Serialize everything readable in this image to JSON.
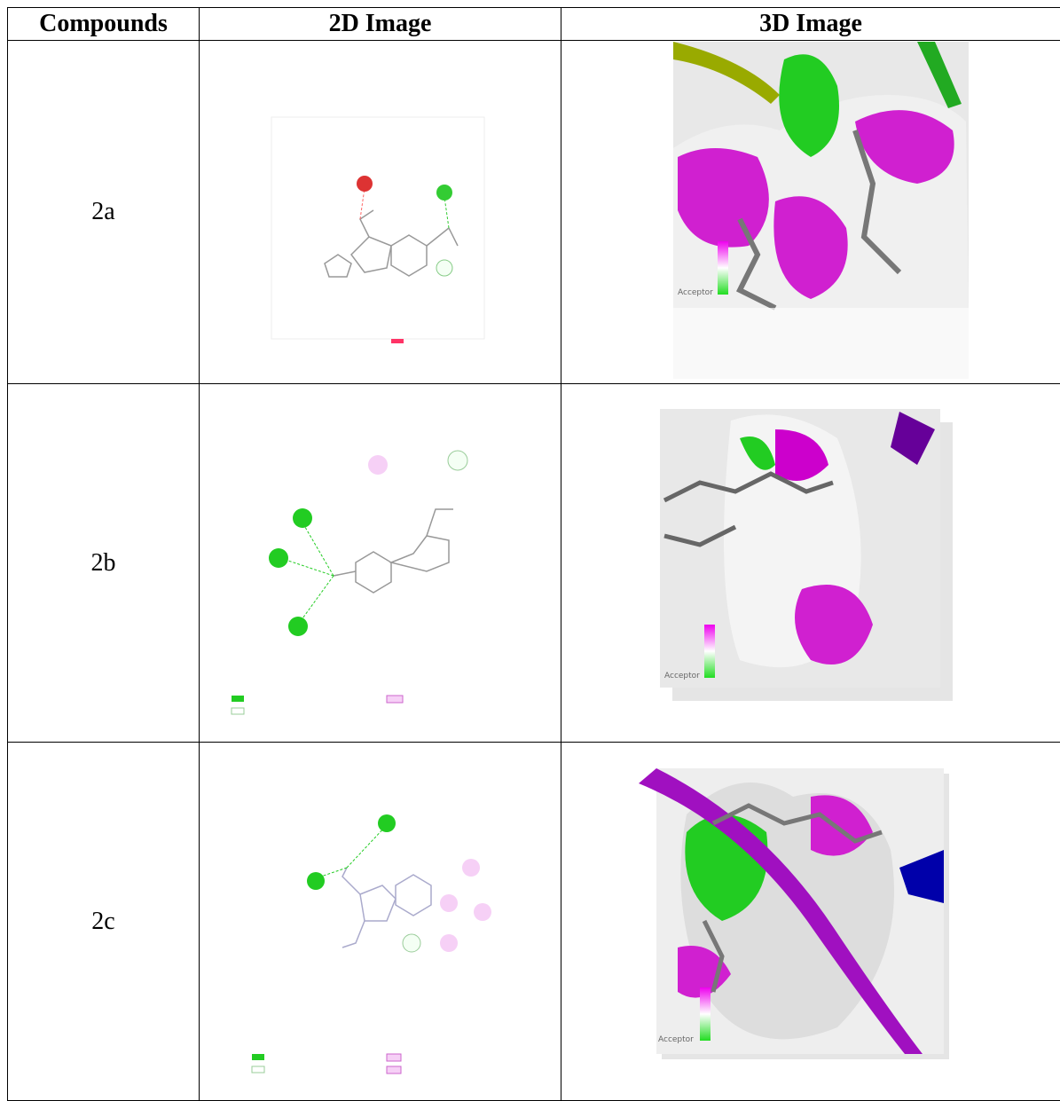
{
  "table": {
    "header": [
      "Compounds",
      "2D Image",
      "3D Image"
    ],
    "rows": [
      {
        "compound": "2a",
        "surface_legend": "Acceptor"
      },
      {
        "compound": "2b",
        "surface_legend": "Acceptor"
      },
      {
        "compound": "2c",
        "surface_legend": "Acceptor"
      }
    ]
  }
}
